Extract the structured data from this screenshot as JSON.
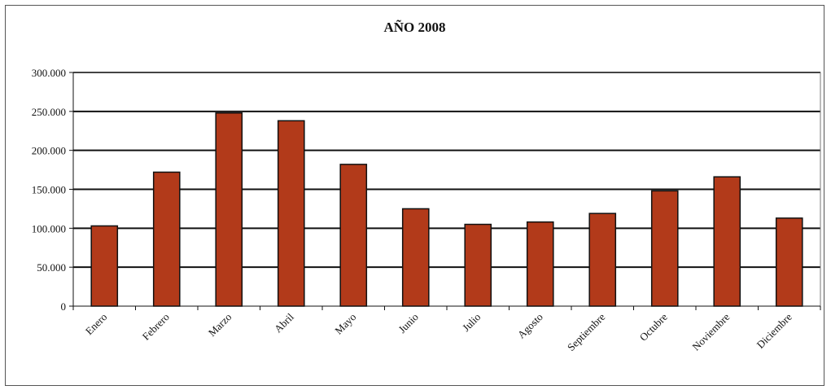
{
  "chart_data": {
    "type": "bar",
    "title": "AÑO 2008",
    "categories": [
      "Enero",
      "Febrero",
      "Marzo",
      "Abril",
      "Mayo",
      "Junio",
      "Julio",
      "Agosto",
      "Septiembre",
      "Octubre",
      "Noviembre",
      "Diciembre"
    ],
    "values": [
      103000,
      172000,
      248000,
      238000,
      182000,
      125000,
      105000,
      108000,
      119000,
      148000,
      166000,
      113000
    ],
    "ylim": [
      0,
      300000
    ],
    "yticks": [
      0,
      50000,
      100000,
      150000,
      200000,
      250000,
      300000
    ],
    "ytick_labels": [
      "0",
      "50.000",
      "100.000",
      "150.000",
      "200.000",
      "250.000",
      "300.000"
    ],
    "grid": true,
    "bar_color": "#b23a1a",
    "xlabel": "",
    "ylabel": ""
  }
}
